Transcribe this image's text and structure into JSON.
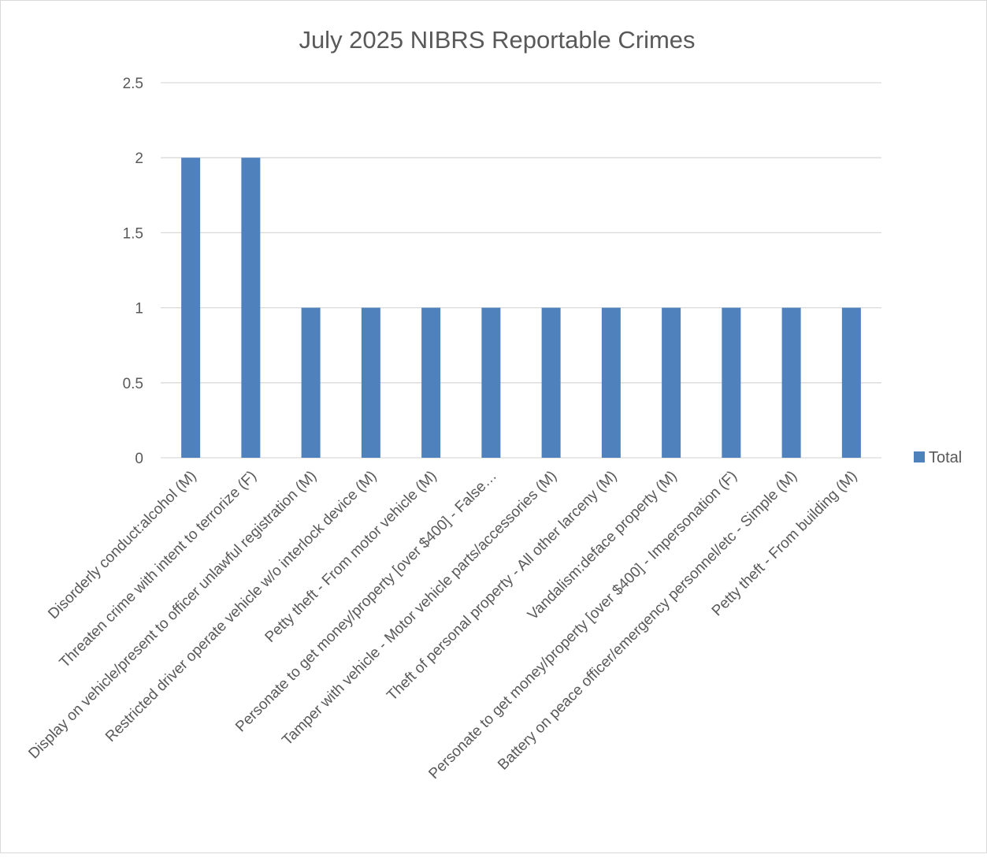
{
  "chart_data": {
    "type": "bar",
    "title": "July 2025 NIBRS Reportable Crimes",
    "xlabel": "",
    "ylabel": "",
    "ylim": [
      0,
      2.5
    ],
    "yticks": [
      "0",
      "0.5",
      "1",
      "1.5",
      "2",
      "2.5"
    ],
    "grid": true,
    "legend_position": "right",
    "categories": [
      "Disorderly conduct:alcohol (M)",
      "Threaten crime with intent to terrorize (F)",
      "Display on vehicle/present to officer unlawful registration (M)",
      "Restricted driver operate vehicle w/o interlock device (M)",
      "Petty theft - From motor vehicle (M)",
      "Personate to get money/property [over $400] - False…",
      "Tamper with vehicle - Motor vehicle parts/accessories (M)",
      "Theft of personal property - All other larceny (M)",
      "Vandalism:deface property (M)",
      "Personate to get money/property [over $400] - Impersonation (F)",
      "Battery on peace officer/emergency personnel/etc - Simple (M)",
      "Petty theft - From building (M)"
    ],
    "series": [
      {
        "name": "Total",
        "color": "#4f81bd",
        "values": [
          2,
          2,
          1,
          1,
          1,
          1,
          1,
          1,
          1,
          1,
          1,
          1
        ]
      }
    ]
  }
}
